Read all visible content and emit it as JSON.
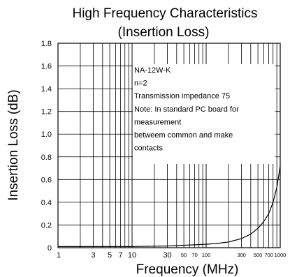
{
  "chart_data": {
    "type": "line",
    "title": [
      "High Frequency Characteristics",
      "(Insertion Loss)"
    ],
    "xlabel": "Frequency (MHz)",
    "ylabel": "Insertion Loss (dB)",
    "xscale": "log",
    "xlim": [
      1,
      1000
    ],
    "ylim": [
      0,
      1.8
    ],
    "grid": true,
    "yticks": [
      "0",
      "0.2",
      "0.4",
      "0.6",
      "0.8",
      "1.0",
      "1.2",
      "1.4",
      "1.6",
      "1.8"
    ],
    "xticks_major": [
      {
        "v": 1,
        "label": "1"
      },
      {
        "v": 3,
        "label": "3"
      },
      {
        "v": 5,
        "label": "5"
      },
      {
        "v": 7,
        "label": "7"
      },
      {
        "v": 10,
        "label": "10"
      },
      {
        "v": 30,
        "label": "30"
      }
    ],
    "xticks_minor": [
      {
        "v": 50,
        "label": "50"
      },
      {
        "v": 70,
        "label": "70"
      },
      {
        "v": 100,
        "label": "100"
      },
      {
        "v": 300,
        "label": "300"
      },
      {
        "v": 500,
        "label": "500"
      },
      {
        "v": 700,
        "label": "700"
      },
      {
        "v": 1000,
        "label": "1000"
      }
    ],
    "annotation": [
      "NA-12W-K",
      "n=2",
      "Transmission impedance 75",
      "Note: In standard PC board for",
      "measurement",
      "betweem common and make",
      "contacts"
    ],
    "series": [
      {
        "x": [
          1,
          10,
          30,
          100,
          150,
          200,
          300,
          400,
          500,
          600,
          700,
          800,
          900,
          1000
        ],
        "values": [
          0.01,
          0.01,
          0.015,
          0.03,
          0.04,
          0.05,
          0.08,
          0.12,
          0.17,
          0.23,
          0.3,
          0.4,
          0.53,
          0.72
        ]
      }
    ]
  }
}
